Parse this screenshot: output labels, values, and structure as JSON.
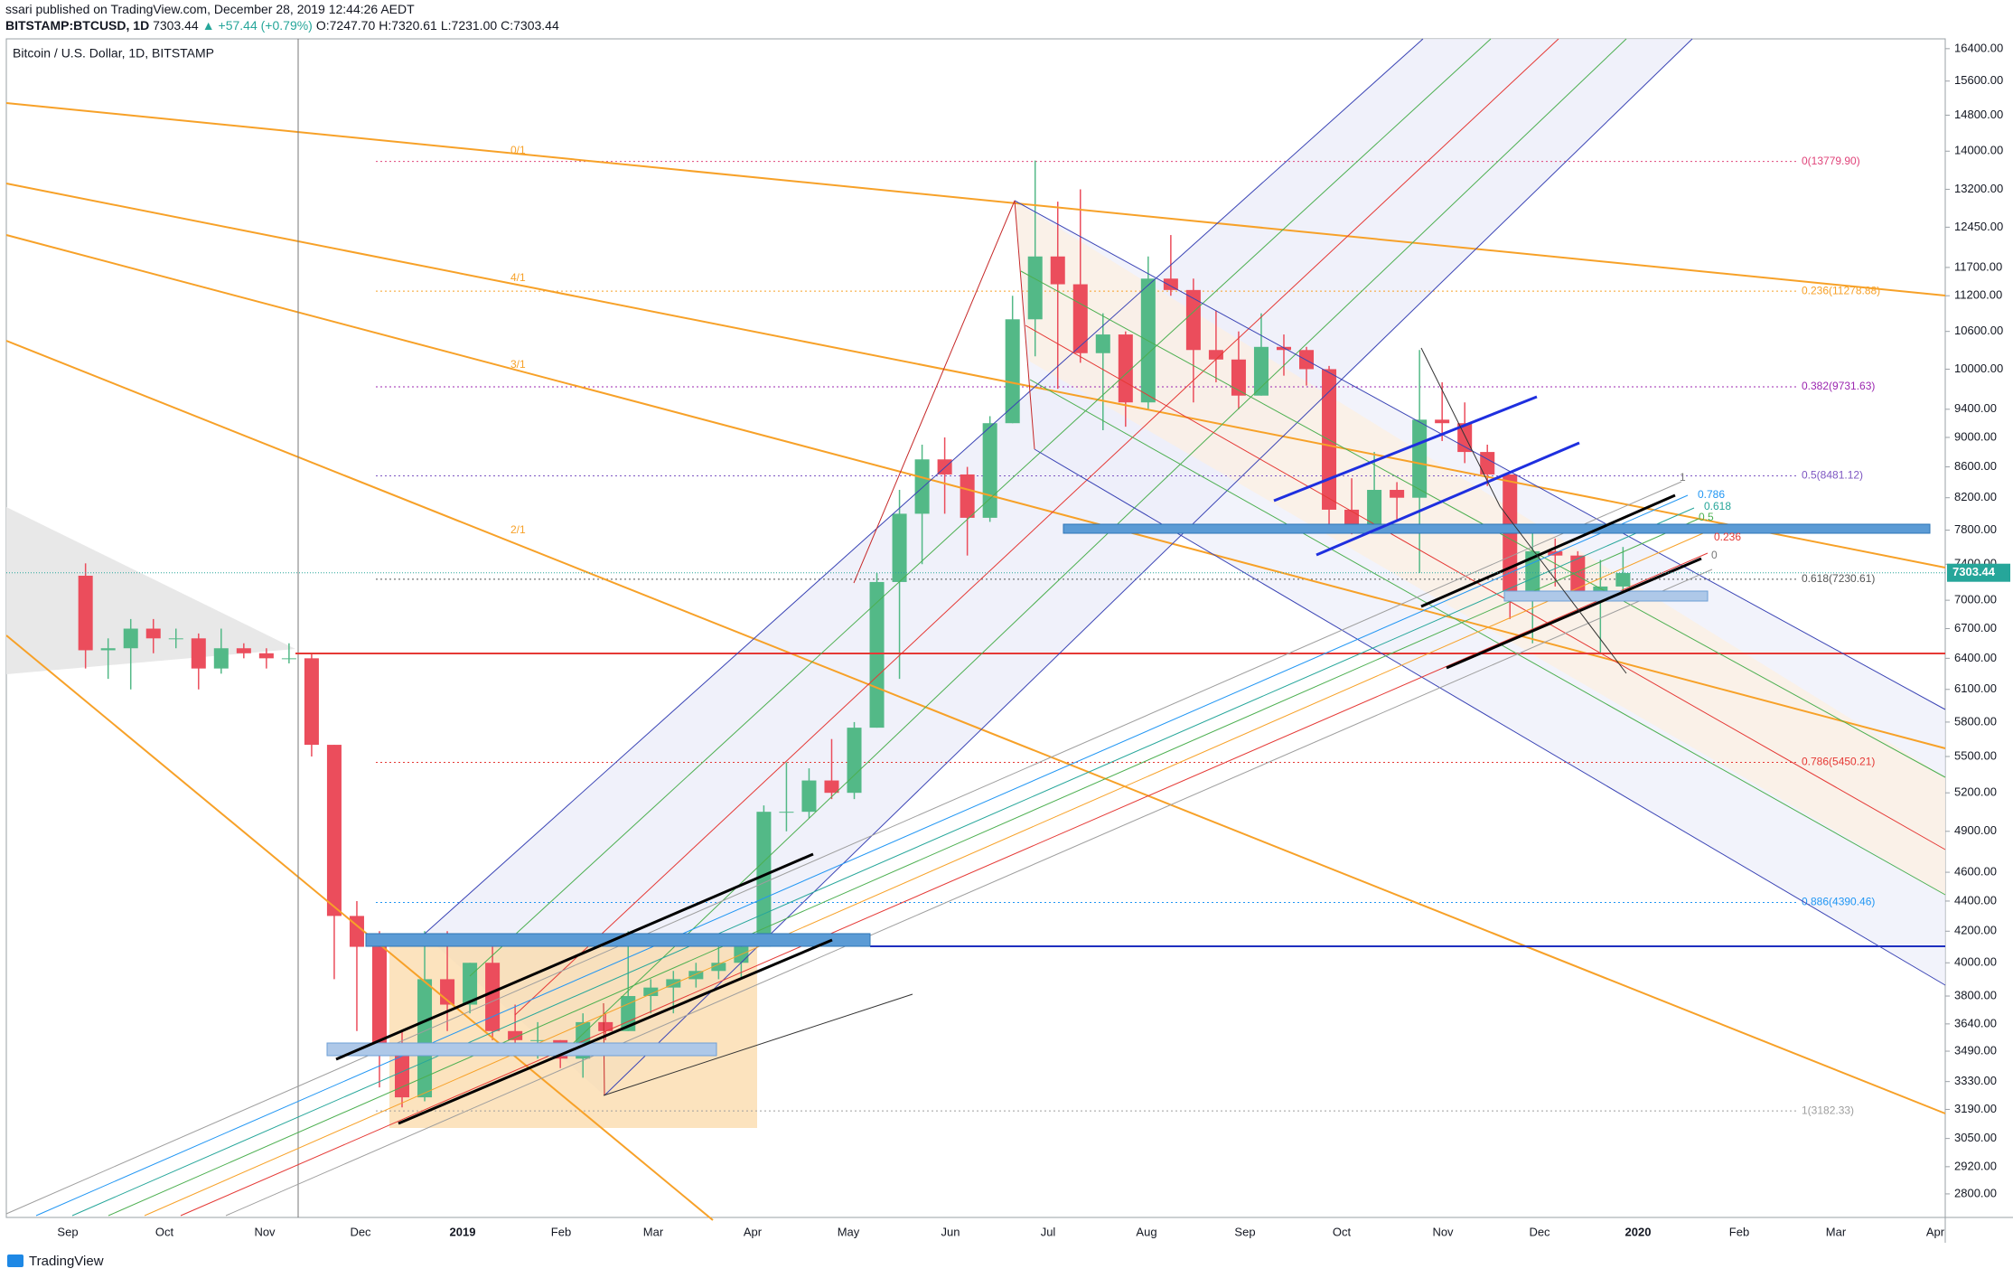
{
  "header": {
    "publisher": "ssari published on TradingView.com, December 28, 2019 12:44:26 AEDT",
    "symbol": "BITSTAMP:BTCUSD, 1D",
    "last": "7303.44",
    "arrow": "▲",
    "change": "+57.44 (+0.79%)",
    "ohlc": [
      {
        "label": "O:",
        "value": "7247.70"
      },
      {
        "label": "H:",
        "value": "7320.61"
      },
      {
        "label": "L:",
        "value": "7231.00"
      },
      {
        "label": "C:",
        "value": "7303.44"
      }
    ]
  },
  "chart_data": {
    "type": "candlestick",
    "title": "Bitcoin / U.S. Dollar, 1D, BITSTAMP",
    "log_scale": true,
    "up_color": "#53b987",
    "down_color": "#eb4d5c",
    "x_axis_labels": [
      "Sep",
      "Oct",
      "Nov",
      "Dec",
      "2019",
      "Feb",
      "Mar",
      "Apr",
      "May",
      "Jun",
      "Jul",
      "Aug",
      "Sep",
      "Oct",
      "Nov",
      "Dec",
      "2020",
      "Feb",
      "Mar",
      "Apr"
    ],
    "open": [
      7270,
      6480,
      6500,
      6700,
      6600,
      6600,
      6300,
      6500,
      6450,
      6400,
      6400,
      5600,
      4300,
      4100,
      3500,
      3250,
      3900,
      3750,
      4000,
      3600,
      3550,
      3550,
      3450,
      3650,
      3600,
      3800,
      3850,
      3900,
      3950,
      4000,
      4100,
      5050,
      5050,
      5300,
      5200,
      5750,
      7200,
      8000,
      8700,
      8500,
      7950,
      9200,
      10800,
      11900,
      11400,
      10250,
      10550,
      9500,
      11500,
      11300,
      10300,
      10150,
      9600,
      10350,
      10300,
      10000,
      8050,
      7850,
      8300,
      8200,
      9250,
      9200,
      8800,
      8500,
      7100,
      7550,
      7500,
      7100,
      7150
    ],
    "high": [
      7410,
      6600,
      6800,
      6800,
      6700,
      6650,
      6700,
      6550,
      6500,
      6550,
      6450,
      5600,
      4400,
      4200,
      3600,
      4200,
      4200,
      4000,
      4100,
      3750,
      3650,
      3550,
      3700,
      3700,
      4200,
      3900,
      3950,
      4000,
      4100,
      4150,
      5100,
      5450,
      5400,
      5650,
      5800,
      7300,
      8300,
      8900,
      9000,
      8600,
      9300,
      11200,
      13800,
      12950,
      13200,
      10900,
      10600,
      11900,
      12300,
      11500,
      10950,
      10600,
      10900,
      10550,
      10350,
      10050,
      8450,
      8800,
      8400,
      10300,
      9800,
      9500,
      8900,
      8500,
      7800,
      7700,
      7550,
      7450,
      7600
    ],
    "low": [
      6300,
      6200,
      6100,
      6450,
      6500,
      6100,
      6250,
      6400,
      6300,
      6350,
      5500,
      3900,
      3600,
      3300,
      3200,
      3230,
      3600,
      3700,
      3550,
      3500,
      3450,
      3400,
      3350,
      3550,
      3600,
      3700,
      3700,
      3850,
      3900,
      3900,
      4100,
      4900,
      5000,
      5150,
      5150,
      5750,
      6200,
      7400,
      8000,
      7500,
      7900,
      9200,
      10200,
      9700,
      10100,
      9100,
      9150,
      9400,
      11200,
      9500,
      9800,
      9400,
      9600,
      9900,
      9750,
      7800,
      7750,
      7800,
      7900,
      7300,
      8950,
      8650,
      8350,
      6800,
      6550,
      7150,
      7050,
      6450,
      7100
    ],
    "close": [
      6480,
      6500,
      6700,
      6600,
      6600,
      6300,
      6500,
      6450,
      6400,
      6400,
      5600,
      4300,
      4100,
      3500,
      3250,
      3900,
      3750,
      4000,
      3600,
      3550,
      3550,
      3450,
      3650,
      3600,
      3800,
      3850,
      3900,
      3950,
      4000,
      4100,
      5050,
      5050,
      5300,
      5200,
      5750,
      7200,
      8000,
      8700,
      8500,
      7950,
      9200,
      10800,
      11900,
      11400,
      10250,
      10550,
      9500,
      11500,
      11300,
      10300,
      10150,
      9600,
      10350,
      10300,
      10000,
      8050,
      7850,
      8300,
      8200,
      9250,
      9200,
      8800,
      8500,
      7100,
      7550,
      7500,
      7100,
      7150,
      7300
    ],
    "ylim": [
      2700,
      16650
    ],
    "yticks": [
      {
        "value": 16400,
        "label": "16400.00"
      },
      {
        "value": 15600,
        "label": "15600.00"
      },
      {
        "value": 14800,
        "label": "14800.00"
      },
      {
        "value": 14000,
        "label": "14000.00"
      },
      {
        "value": 13200,
        "label": "13200.00"
      },
      {
        "value": 12450,
        "label": "12450.00"
      },
      {
        "value": 11700,
        "label": "11700.00"
      },
      {
        "value": 11200,
        "label": "11200.00"
      },
      {
        "value": 10600,
        "label": "10600.00"
      },
      {
        "value": 10000,
        "label": "10000.00"
      },
      {
        "value": 9400,
        "label": "9400.00"
      },
      {
        "value": 9000,
        "label": "9000.00"
      },
      {
        "value": 8600,
        "label": "8600.00"
      },
      {
        "value": 8200,
        "label": "8200.00"
      },
      {
        "value": 7800,
        "label": "7800.00"
      },
      {
        "value": 7400,
        "label": "7400.00"
      },
      {
        "value": 7000,
        "label": "7000.00"
      },
      {
        "value": 6700,
        "label": "6700.00"
      },
      {
        "value": 6400,
        "label": "6400.00"
      },
      {
        "value": 6100,
        "label": "6100.00"
      },
      {
        "value": 5800,
        "label": "5800.00"
      },
      {
        "value": 5500,
        "label": "5500.00"
      },
      {
        "value": 5200,
        "label": "5200.00"
      },
      {
        "value": 4900,
        "label": "4900.00"
      },
      {
        "value": 4600,
        "label": "4600.00"
      },
      {
        "value": 4400,
        "label": "4400.00"
      },
      {
        "value": 4200,
        "label": "4200.00"
      },
      {
        "value": 4000,
        "label": "4000.00"
      },
      {
        "value": 3800,
        "label": "3800.00"
      },
      {
        "value": 3640,
        "label": "3640.00"
      },
      {
        "value": 3490,
        "label": "3490.00"
      },
      {
        "value": 3330,
        "label": "3330.00"
      },
      {
        "value": 3190,
        "label": "3190.00"
      },
      {
        "value": 3050,
        "label": "3050.00"
      },
      {
        "value": 2920,
        "label": "2920.00"
      },
      {
        "value": 2800,
        "label": "2800.00"
      }
    ],
    "last_price": {
      "value": 7303.44,
      "label": "7303.44",
      "color": "#26a69a"
    },
    "fib_levels": [
      {
        "value": 13779.9,
        "label": "0(13779.90)",
        "color": "#e0457b"
      },
      {
        "value": 11278.88,
        "label": "0.236(11278.88)",
        "color": "#f7a128"
      },
      {
        "value": 9731.63,
        "label": "0.382(9731.63)",
        "color": "#9c27b0"
      },
      {
        "value": 8481.12,
        "label": "0.5(8481.12)",
        "color": "#7e57c2"
      },
      {
        "value": 7230.61,
        "label": "0.618(7230.61)",
        "color": "#555555"
      },
      {
        "value": 5450.21,
        "label": "0.786(5450.21)",
        "color": "#e53935"
      },
      {
        "value": 4390.46,
        "label": "0.886(4390.46)",
        "color": "#2196f3"
      },
      {
        "value": 3182.33,
        "label": "1(3182.33)",
        "color": "#9e9e9e"
      }
    ],
    "annotations": [
      "0/1",
      "4/1",
      "3/1",
      "2/1",
      "1",
      "0.786",
      "0.618",
      "0.5",
      "0.236",
      "0"
    ]
  },
  "footer": {
    "brand": "TradingView"
  }
}
